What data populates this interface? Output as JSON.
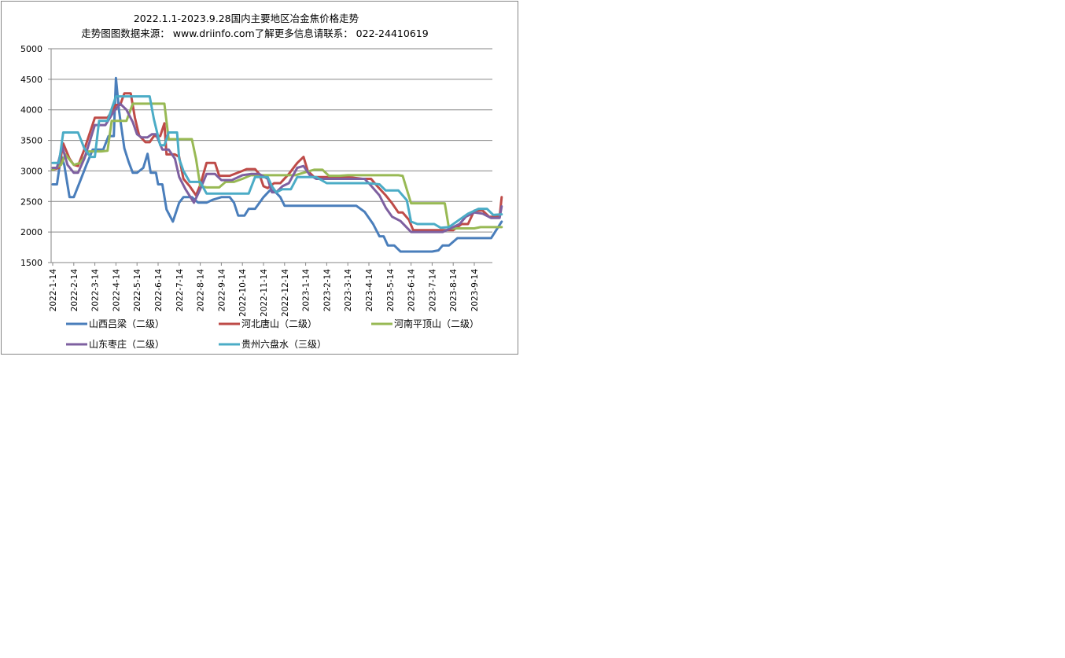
{
  "chart_data": {
    "type": "line",
    "title": "2022.1.1-2023.9.28国内主要地区冶金焦价格走势",
    "subtitle": "走势图图数据来源： www.driinfo.com了解更多信息请联系： 022-24410619",
    "xlabel": "",
    "ylabel": "",
    "ylim": [
      1500,
      5000
    ],
    "yticks": [
      "5000",
      "4500",
      "4000",
      "3500",
      "3000",
      "2500",
      "2000",
      "1500"
    ],
    "x_tick_labels": [
      "2022-1-14",
      "2022-2-14",
      "2022-3-14",
      "2022-4-14",
      "2022-5-14",
      "2022-6-14",
      "2022-7-14",
      "2022-8-14",
      "2022-9-14",
      "2022-10-14",
      "2022-11-14",
      "2022-12-14",
      "2023-1-14",
      "2023-2-14",
      "2023-3-14",
      "2023-4-14",
      "2023-5-14",
      "2023-6-14",
      "2023-7-14",
      "2023-8-14",
      "2023-9-14"
    ],
    "grid": true,
    "legend_position": "bottom",
    "series": [
      {
        "name": "山西吕梁（二级）",
        "color": "#4a7ebb",
        "points": [
          [
            0,
            2780
          ],
          [
            0.2,
            2780
          ],
          [
            0.4,
            3250
          ],
          [
            0.55,
            3100
          ],
          [
            0.8,
            2570
          ],
          [
            1.0,
            2570
          ],
          [
            1.3,
            2830
          ],
          [
            1.6,
            3100
          ],
          [
            1.9,
            3350
          ],
          [
            2.4,
            3350
          ],
          [
            2.65,
            3570
          ],
          [
            2.9,
            3570
          ],
          [
            3.0,
            4520
          ],
          [
            3.15,
            3980
          ],
          [
            3.4,
            3370
          ],
          [
            3.6,
            3150
          ],
          [
            3.8,
            2970
          ],
          [
            4.0,
            2970
          ],
          [
            4.3,
            3050
          ],
          [
            4.5,
            3280
          ],
          [
            4.65,
            2970
          ],
          [
            4.9,
            2970
          ],
          [
            5.0,
            2780
          ],
          [
            5.2,
            2780
          ],
          [
            5.4,
            2370
          ],
          [
            5.7,
            2170
          ],
          [
            6.0,
            2480
          ],
          [
            6.2,
            2570
          ],
          [
            6.6,
            2570
          ],
          [
            6.9,
            2480
          ],
          [
            7.3,
            2480
          ],
          [
            7.6,
            2530
          ],
          [
            8.0,
            2570
          ],
          [
            8.4,
            2570
          ],
          [
            8.6,
            2480
          ],
          [
            8.8,
            2270
          ],
          [
            9.1,
            2270
          ],
          [
            9.3,
            2380
          ],
          [
            9.6,
            2380
          ],
          [
            10.0,
            2570
          ],
          [
            10.3,
            2680
          ],
          [
            10.5,
            2680
          ],
          [
            10.8,
            2570
          ],
          [
            11.0,
            2430
          ],
          [
            12.0,
            2430
          ],
          [
            13.0,
            2430
          ],
          [
            14.4,
            2430
          ],
          [
            14.8,
            2330
          ],
          [
            15.2,
            2130
          ],
          [
            15.5,
            1930
          ],
          [
            15.7,
            1930
          ],
          [
            15.9,
            1780
          ],
          [
            16.2,
            1780
          ],
          [
            16.5,
            1680
          ],
          [
            17.0,
            1680
          ],
          [
            17.5,
            1680
          ],
          [
            18.0,
            1680
          ],
          [
            18.3,
            1700
          ],
          [
            18.5,
            1780
          ],
          [
            18.8,
            1780
          ],
          [
            19.2,
            1900
          ],
          [
            20.0,
            1900
          ],
          [
            20.8,
            1900
          ],
          [
            21.3,
            2170
          ]
        ]
      },
      {
        "name": "河北唐山（二级）",
        "color": "#be4b48",
        "points": [
          [
            0,
            3020
          ],
          [
            0.3,
            3050
          ],
          [
            0.5,
            3450
          ],
          [
            0.8,
            3200
          ],
          [
            1.0,
            3100
          ],
          [
            1.2,
            3080
          ],
          [
            1.5,
            3350
          ],
          [
            2.0,
            3870
          ],
          [
            2.6,
            3870
          ],
          [
            3.0,
            4080
          ],
          [
            3.2,
            4080
          ],
          [
            3.4,
            4270
          ],
          [
            3.7,
            4270
          ],
          [
            3.9,
            3870
          ],
          [
            4.1,
            3580
          ],
          [
            4.4,
            3470
          ],
          [
            4.6,
            3470
          ],
          [
            4.8,
            3570
          ],
          [
            5.1,
            3570
          ],
          [
            5.3,
            3780
          ],
          [
            5.4,
            3270
          ],
          [
            5.8,
            3270
          ],
          [
            6.0,
            3230
          ],
          [
            6.2,
            2870
          ],
          [
            6.5,
            2750
          ],
          [
            6.8,
            2600
          ],
          [
            7.0,
            2770
          ],
          [
            7.3,
            3130
          ],
          [
            7.7,
            3130
          ],
          [
            7.9,
            2920
          ],
          [
            8.4,
            2920
          ],
          [
            9.0,
            3000
          ],
          [
            9.2,
            3030
          ],
          [
            9.6,
            3030
          ],
          [
            9.8,
            2950
          ],
          [
            10.0,
            2750
          ],
          [
            10.2,
            2720
          ],
          [
            10.5,
            2800
          ],
          [
            10.8,
            2800
          ],
          [
            11.2,
            2950
          ],
          [
            11.6,
            3130
          ],
          [
            11.9,
            3230
          ],
          [
            12.1,
            3000
          ],
          [
            12.4,
            2900
          ],
          [
            14.0,
            2900
          ],
          [
            14.7,
            2870
          ],
          [
            15.1,
            2870
          ],
          [
            15.4,
            2750
          ],
          [
            15.8,
            2600
          ],
          [
            16.1,
            2470
          ],
          [
            16.4,
            2320
          ],
          [
            16.6,
            2320
          ],
          [
            16.9,
            2200
          ],
          [
            17.1,
            2030
          ],
          [
            18.0,
            2030
          ],
          [
            18.5,
            2030
          ],
          [
            19.0,
            2030
          ],
          [
            19.4,
            2130
          ],
          [
            19.7,
            2130
          ],
          [
            20.0,
            2350
          ],
          [
            20.4,
            2350
          ],
          [
            20.7,
            2250
          ],
          [
            21.0,
            2250
          ],
          [
            21.2,
            2250
          ],
          [
            21.3,
            2570
          ]
        ]
      },
      {
        "name": "河南平顶山（二级）",
        "color": "#98b954",
        "points": [
          [
            0,
            3020
          ],
          [
            0.4,
            3100
          ],
          [
            0.6,
            3270
          ],
          [
            1.0,
            3100
          ],
          [
            1.3,
            3130
          ],
          [
            1.7,
            3320
          ],
          [
            2.0,
            3320
          ],
          [
            2.3,
            3320
          ],
          [
            2.6,
            3330
          ],
          [
            2.8,
            3820
          ],
          [
            3.4,
            3820
          ],
          [
            3.5,
            3820
          ],
          [
            3.8,
            4100
          ],
          [
            4.8,
            4100
          ],
          [
            5.3,
            4100
          ],
          [
            5.5,
            3520
          ],
          [
            6.0,
            3520
          ],
          [
            6.6,
            3520
          ],
          [
            6.8,
            3200
          ],
          [
            7.0,
            2750
          ],
          [
            7.3,
            2730
          ],
          [
            7.9,
            2730
          ],
          [
            8.2,
            2820
          ],
          [
            8.6,
            2820
          ],
          [
            9.0,
            2870
          ],
          [
            9.4,
            2930
          ],
          [
            10.5,
            2930
          ],
          [
            11.5,
            2930
          ],
          [
            12.4,
            3020
          ],
          [
            12.8,
            3020
          ],
          [
            13.1,
            2920
          ],
          [
            13.6,
            2920
          ],
          [
            14.0,
            2930
          ],
          [
            15.0,
            2930
          ],
          [
            16.0,
            2930
          ],
          [
            16.4,
            2930
          ],
          [
            16.6,
            2920
          ],
          [
            17.0,
            2470
          ],
          [
            18.0,
            2470
          ],
          [
            18.6,
            2470
          ],
          [
            18.8,
            2060
          ],
          [
            19.2,
            2060
          ],
          [
            19.6,
            2060
          ],
          [
            20.0,
            2060
          ],
          [
            20.3,
            2080
          ],
          [
            21.3,
            2080
          ]
        ]
      },
      {
        "name": "山东枣庄（二级）",
        "color": "#7e60a0",
        "points": [
          [
            0,
            3050
          ],
          [
            0.2,
            3050
          ],
          [
            0.45,
            3400
          ],
          [
            0.7,
            3100
          ],
          [
            1.0,
            2970
          ],
          [
            1.2,
            2970
          ],
          [
            1.5,
            3200
          ],
          [
            2.0,
            3750
          ],
          [
            2.5,
            3750
          ],
          [
            2.9,
            3970
          ],
          [
            3.2,
            4100
          ],
          [
            3.5,
            4000
          ],
          [
            3.8,
            3800
          ],
          [
            4.0,
            3600
          ],
          [
            4.2,
            3550
          ],
          [
            4.5,
            3550
          ],
          [
            4.7,
            3600
          ],
          [
            4.9,
            3600
          ],
          [
            5.2,
            3350
          ],
          [
            5.5,
            3350
          ],
          [
            5.8,
            3200
          ],
          [
            6.0,
            2900
          ],
          [
            6.3,
            2700
          ],
          [
            6.7,
            2480
          ],
          [
            7.0,
            2700
          ],
          [
            7.3,
            2950
          ],
          [
            7.7,
            2950
          ],
          [
            8.0,
            2850
          ],
          [
            8.5,
            2850
          ],
          [
            9.0,
            2930
          ],
          [
            9.4,
            2950
          ],
          [
            9.8,
            2950
          ],
          [
            10.2,
            2870
          ],
          [
            10.4,
            2650
          ],
          [
            10.6,
            2650
          ],
          [
            10.9,
            2750
          ],
          [
            11.2,
            2800
          ],
          [
            11.6,
            3050
          ],
          [
            11.9,
            3080
          ],
          [
            12.2,
            2930
          ],
          [
            12.5,
            2870
          ],
          [
            13.5,
            2870
          ],
          [
            14.5,
            2870
          ],
          [
            14.8,
            2870
          ],
          [
            15.1,
            2760
          ],
          [
            15.5,
            2600
          ],
          [
            15.8,
            2400
          ],
          [
            16.1,
            2250
          ],
          [
            16.5,
            2180
          ],
          [
            17.0,
            2000
          ],
          [
            18.0,
            2000
          ],
          [
            18.5,
            2000
          ],
          [
            19.0,
            2080
          ],
          [
            19.3,
            2130
          ],
          [
            19.6,
            2250
          ],
          [
            20.0,
            2320
          ],
          [
            20.4,
            2300
          ],
          [
            20.8,
            2230
          ],
          [
            21.2,
            2230
          ],
          [
            21.3,
            2420
          ]
        ]
      },
      {
        "name": "贵州六盘水（三级）",
        "color": "#4bacc6",
        "points": [
          [
            0,
            3130
          ],
          [
            0.3,
            3130
          ],
          [
            0.5,
            3630
          ],
          [
            1.0,
            3630
          ],
          [
            1.2,
            3630
          ],
          [
            1.5,
            3370
          ],
          [
            1.8,
            3230
          ],
          [
            2.0,
            3230
          ],
          [
            2.2,
            3820
          ],
          [
            2.6,
            3820
          ],
          [
            3.0,
            4220
          ],
          [
            3.8,
            4220
          ],
          [
            4.6,
            4220
          ],
          [
            4.8,
            3850
          ],
          [
            5.1,
            3420
          ],
          [
            5.3,
            3420
          ],
          [
            5.5,
            3630
          ],
          [
            5.9,
            3630
          ],
          [
            6.0,
            3200
          ],
          [
            6.2,
            3000
          ],
          [
            6.5,
            2820
          ],
          [
            7.0,
            2820
          ],
          [
            7.3,
            2630
          ],
          [
            8.0,
            2630
          ],
          [
            8.5,
            2630
          ],
          [
            9.3,
            2630
          ],
          [
            9.6,
            2900
          ],
          [
            10.2,
            2900
          ],
          [
            10.4,
            2750
          ],
          [
            10.6,
            2650
          ],
          [
            10.9,
            2700
          ],
          [
            11.3,
            2700
          ],
          [
            11.6,
            2900
          ],
          [
            12.2,
            2900
          ],
          [
            12.5,
            2900
          ],
          [
            13.0,
            2800
          ],
          [
            13.5,
            2800
          ],
          [
            14.5,
            2800
          ],
          [
            15.0,
            2800
          ],
          [
            15.5,
            2780
          ],
          [
            15.8,
            2680
          ],
          [
            16.4,
            2680
          ],
          [
            16.8,
            2520
          ],
          [
            17.0,
            2170
          ],
          [
            17.3,
            2130
          ],
          [
            17.8,
            2130
          ],
          [
            18.1,
            2130
          ],
          [
            18.4,
            2070
          ],
          [
            18.8,
            2080
          ],
          [
            19.2,
            2180
          ],
          [
            19.7,
            2300
          ],
          [
            20.2,
            2380
          ],
          [
            20.6,
            2380
          ],
          [
            20.9,
            2280
          ],
          [
            21.3,
            2290
          ]
        ]
      }
    ]
  }
}
